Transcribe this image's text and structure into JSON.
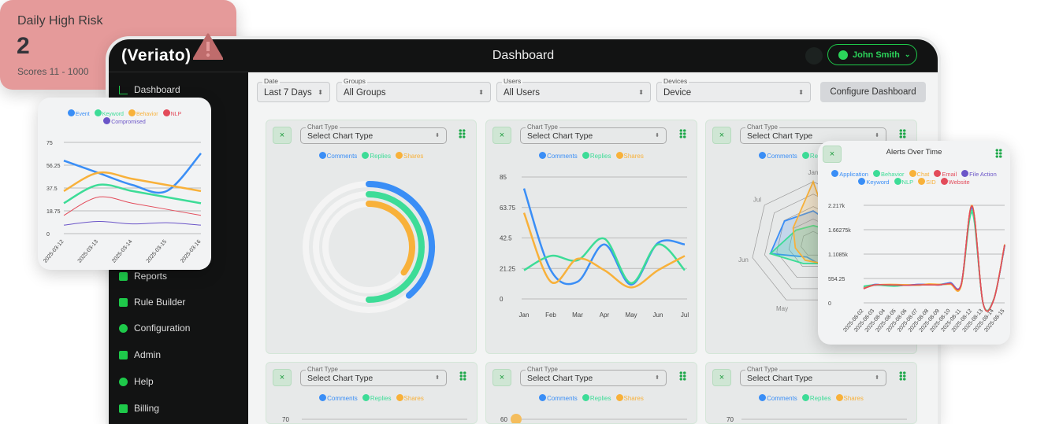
{
  "app": {
    "logo": "(Veriato)",
    "title": "Dashboard",
    "user": "John Smith"
  },
  "sidebar": {
    "items": [
      {
        "label": "Dashboard",
        "icon": "chart-line-icon"
      },
      {
        "label": "Reports",
        "icon": "table-icon"
      },
      {
        "label": "Rule Builder",
        "icon": "toolbox-icon"
      },
      {
        "label": "Configuration",
        "icon": "gear-icon"
      },
      {
        "label": "Admin",
        "icon": "laptop-code-icon"
      },
      {
        "label": "Help",
        "icon": "info-icon"
      },
      {
        "label": "Billing",
        "icon": "coins-icon"
      }
    ]
  },
  "filters": [
    {
      "label": "Date",
      "value": "Last 7 Days"
    },
    {
      "label": "Groups",
      "value": "All Groups"
    },
    {
      "label": "Users",
      "value": "All Users"
    },
    {
      "label": "Devices",
      "value": "Device"
    }
  ],
  "configure_label": "Configure Dashboard",
  "widget": {
    "chart_type_label": "Chart Type",
    "chart_type_value": "Select Chart Type",
    "close": "×"
  },
  "colors": {
    "accent": "#1ec94a",
    "blue": "#3a8ef6",
    "green": "#3ddc97",
    "orange": "#f8b13a",
    "red": "#e34b5a",
    "purple": "#6b55c8"
  },
  "risk": {
    "title": "Daily High Risk",
    "value": "2",
    "subtitle": "Scores 11 - 1000",
    "icon": "warning-icon"
  },
  "bottom_ticks": [
    "70",
    "60",
    "70"
  ],
  "chart_data": [
    {
      "id": "radial",
      "type": "radial-bar",
      "series": [
        {
          "name": "Comments",
          "value": 39
        },
        {
          "name": "Replies",
          "value": 50
        },
        {
          "name": "Shares",
          "value": 35
        }
      ],
      "max": 100
    },
    {
      "id": "line",
      "type": "line",
      "categories": [
        "Jan",
        "Feb",
        "Mar",
        "Apr",
        "May",
        "Jun",
        "Jul"
      ],
      "ylim": [
        0,
        85
      ],
      "yticks": [
        "0",
        "21.25",
        "42.5",
        "63.75",
        "85"
      ],
      "series": [
        {
          "name": "Comments",
          "values": [
            77,
            20,
            12,
            38,
            10,
            39,
            38
          ]
        },
        {
          "name": "Replies",
          "values": [
            20,
            30,
            27,
            42,
            11,
            38,
            20
          ]
        },
        {
          "name": "Shares",
          "values": [
            60,
            12,
            28,
            20,
            8,
            20,
            30
          ]
        }
      ]
    },
    {
      "id": "radar",
      "type": "radar",
      "categories": [
        "Jan",
        "Feb",
        "Mar",
        "Apr",
        "May",
        "Jun",
        "Jul"
      ],
      "max": 85,
      "series": [
        {
          "name": "Comments",
          "values": [
            45,
            40,
            30,
            35,
            20,
            60,
            50
          ]
        },
        {
          "name": "Replies",
          "values": [
            25,
            30,
            35,
            30,
            30,
            60,
            30
          ]
        },
        {
          "name": "Shares",
          "values": [
            85,
            30,
            25,
            30,
            25,
            25,
            35
          ]
        }
      ]
    },
    {
      "id": "left",
      "type": "line",
      "categories": [
        "2025-03-12",
        "2025-03-13",
        "2025-03-14",
        "2025-03-15",
        "2025-03-16"
      ],
      "ylim": [
        0,
        75
      ],
      "yticks": [
        "0",
        "18.75",
        "37.5",
        "56.25",
        "75"
      ],
      "series": [
        {
          "name": "Event",
          "values": [
            60,
            50,
            40,
            35,
            66
          ]
        },
        {
          "name": "Keyword",
          "values": [
            25,
            40,
            35,
            30,
            25
          ]
        },
        {
          "name": "Behavior",
          "values": [
            35,
            50,
            45,
            40,
            35
          ]
        },
        {
          "name": "NLP",
          "values": [
            15,
            30,
            25,
            20,
            15
          ]
        },
        {
          "name": "Compromised",
          "values": [
            7,
            10,
            8,
            9,
            7
          ]
        }
      ]
    },
    {
      "id": "alerts",
      "type": "line",
      "title": "Alerts Over Time",
      "categories": [
        "2025-08-02",
        "2025-08-03",
        "2025-08-04",
        "2025-08-05",
        "2025-08-06",
        "2025-08-07",
        "2025-08-08",
        "2025-08-09",
        "2025-08-10",
        "2025-08-11",
        "2025-08-12",
        "2025-08-13",
        "2025-08-14",
        "2025-08-15"
      ],
      "ylim": [
        0,
        2217
      ],
      "yticks": [
        "0",
        "554.25",
        "1.1085k",
        "1.66275k",
        "2.217k"
      ],
      "series": [
        {
          "name": "Application",
          "values": [
            340,
            420,
            400,
            410,
            400,
            420,
            410,
            420,
            450,
            410,
            2150,
            0,
            80,
            1300
          ]
        },
        {
          "name": "Behavior",
          "values": [
            380,
            410,
            390,
            380,
            410,
            400,
            420,
            410,
            430,
            400,
            2050,
            0,
            90,
            1310
          ]
        },
        {
          "name": "Chat",
          "values": [
            330,
            400,
            420,
            420,
            410,
            400,
            430,
            420,
            420,
            390,
            2217,
            0,
            80,
            1330
          ]
        },
        {
          "name": "Email",
          "values": [
            320,
            410,
            410,
            400,
            400,
            410,
            410,
            410,
            440,
            420,
            2200,
            0,
            70,
            1320
          ]
        },
        {
          "name": "File Action",
          "values": [
            350,
            400,
            400,
            410,
            405,
            420,
            420,
            405,
            460,
            430,
            2180,
            0,
            85,
            1290
          ]
        },
        {
          "name": "Keyword",
          "values": [
            345,
            415,
            400,
            405,
            400,
            415,
            415,
            415,
            450,
            415,
            2160,
            0,
            80,
            1300
          ]
        },
        {
          "name": "NLP",
          "values": [
            370,
            405,
            395,
            385,
            405,
            405,
            415,
            410,
            430,
            405,
            2100,
            0,
            85,
            1310
          ]
        },
        {
          "name": "SID",
          "values": [
            335,
            405,
            415,
            415,
            410,
            405,
            425,
            420,
            425,
            395,
            2210,
            0,
            80,
            1330
          ]
        },
        {
          "name": "Website",
          "values": [
            325,
            410,
            410,
            405,
            400,
            410,
            410,
            410,
            440,
            420,
            2200,
            0,
            75,
            1320
          ]
        }
      ]
    }
  ]
}
